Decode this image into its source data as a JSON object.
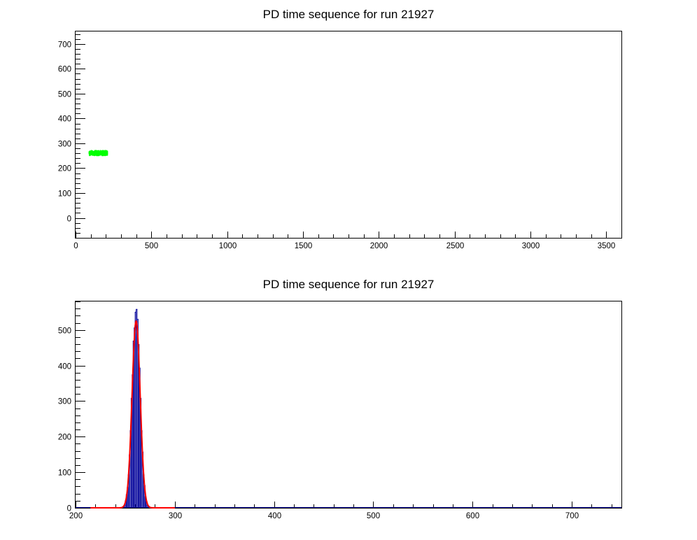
{
  "chart_data": [
    {
      "type": "scatter",
      "title": "PD time sequence for run 21927",
      "xlabel": "",
      "ylabel": "",
      "xlim": [
        0,
        3600
      ],
      "ylim": [
        -80,
        750
      ],
      "xticks": [
        0,
        500,
        1000,
        1500,
        2000,
        2500,
        3000,
        3500
      ],
      "yticks": [
        0,
        100,
        200,
        300,
        400,
        500,
        600,
        700
      ],
      "xtick_labels": [
        "0",
        "500",
        "1000",
        "1500",
        "2000",
        "2500",
        "3000",
        "3500"
      ],
      "ytick_labels": [
        "0",
        "100",
        "200",
        "300",
        "400",
        "500",
        "600",
        "700"
      ],
      "grid": false,
      "series": [
        {
          "color": "#00ff00",
          "x_range": [
            90,
            210
          ],
          "y_center": 261,
          "y_spread": 10,
          "n_points": 1200
        }
      ]
    },
    {
      "type": "histogram",
      "title": "PD time sequence for run 21927",
      "xlabel": "",
      "ylabel": "",
      "xlim": [
        200,
        750
      ],
      "ylim": [
        0,
        580
      ],
      "xticks": [
        200,
        300,
        400,
        500,
        600,
        700
      ],
      "yticks": [
        0,
        100,
        200,
        300,
        400,
        500
      ],
      "xtick_labels": [
        "200",
        "300",
        "400",
        "500",
        "600",
        "700"
      ],
      "ytick_labels": [
        "0",
        "100",
        "200",
        "300",
        "400",
        "500"
      ],
      "grid": false,
      "histogram": {
        "color": "#000099",
        "bin_width": 1,
        "mean": 261,
        "sigma": 4,
        "peak": 558,
        "n_entries": 1200
      },
      "fit": {
        "type": "gaus",
        "color": "#ff0000",
        "constant": 525,
        "mean": 261,
        "sigma": 4.1
      }
    }
  ]
}
